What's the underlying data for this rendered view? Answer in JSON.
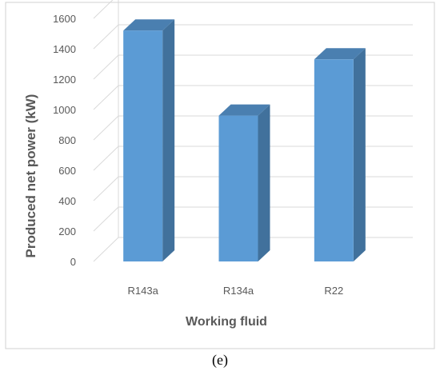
{
  "chart_data": {
    "type": "bar",
    "categories": [
      "R143a",
      "R134a",
      "R22"
    ],
    "values": [
      1520,
      960,
      1330
    ],
    "xlabel": "Working fluid",
    "ylabel": "Produced net power (kW)",
    "ylim": [
      0,
      1600
    ],
    "yticks": [
      0,
      200,
      400,
      600,
      800,
      1000,
      1200,
      1400,
      1600
    ],
    "grid": true,
    "legend": "none",
    "colors": {
      "bar_front": "#5b9bd5",
      "bar_side": "#41719c",
      "bar_top": "#4a7fb0",
      "grid": "#d9d9d9",
      "axis_text": "#595959"
    }
  },
  "caption": "(e)"
}
